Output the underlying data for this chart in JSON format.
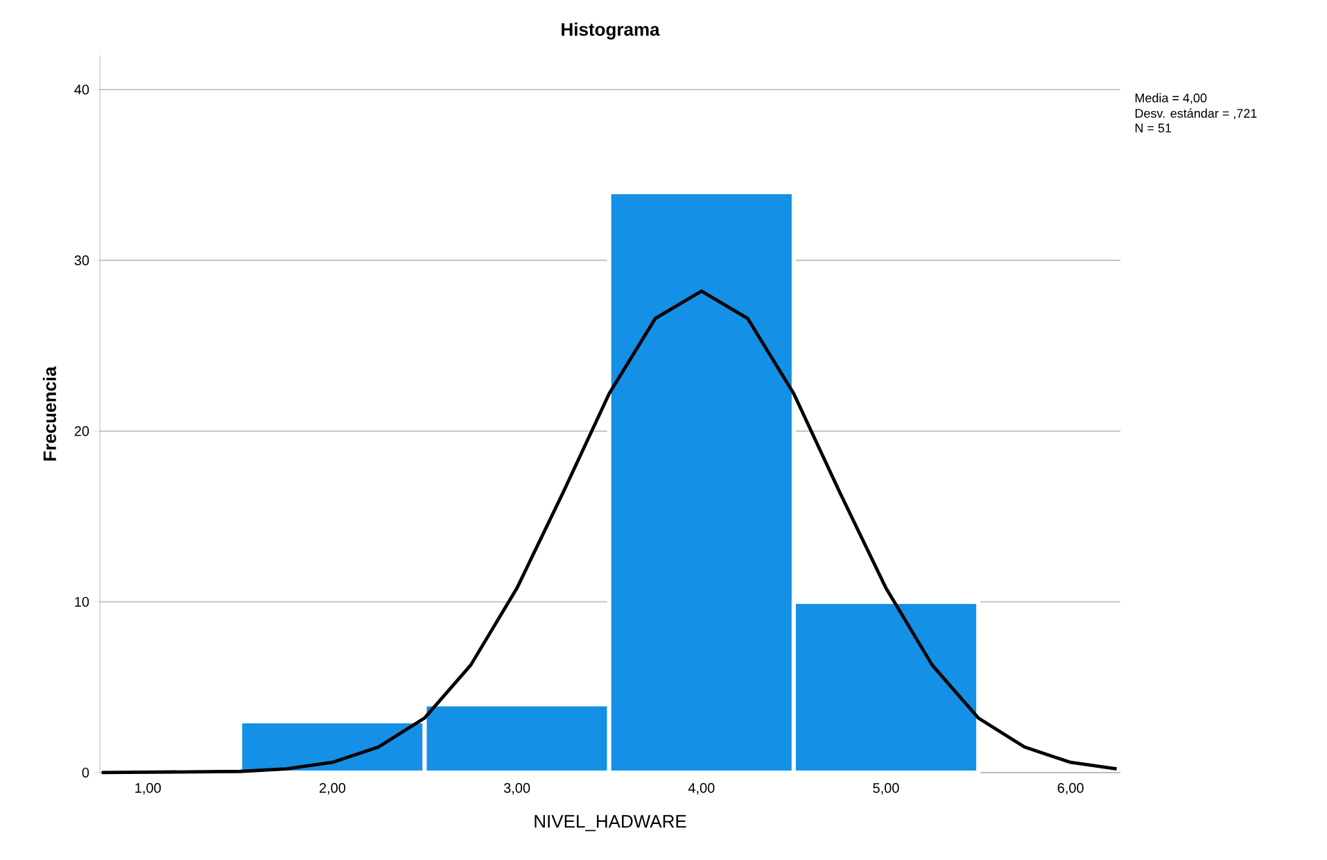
{
  "chart_data": {
    "type": "histogram",
    "title": "Histograma",
    "xlabel": "NIVEL_HADWARE",
    "ylabel": "Frecuencia",
    "bins": [
      1.5,
      2.5,
      3.5,
      4.5,
      5.5
    ],
    "values": [
      3,
      4,
      34,
      10
    ],
    "color": "#1490e6",
    "series": [
      {
        "type": "line",
        "color": "#000000",
        "x": [
          0.75,
          1.5,
          1.75,
          2,
          2.25,
          2.5,
          2.75,
          3,
          3.25,
          3.5,
          3.75,
          4,
          4.25,
          4.5,
          4.75,
          5,
          5.25,
          5.5,
          5.75,
          6,
          6.25
        ],
        "values": [
          0,
          0.07,
          0.22,
          0.6,
          1.5,
          3.2,
          6.3,
          10.8,
          16.4,
          22.2,
          26.6,
          28.2,
          26.6,
          22.2,
          16.4,
          10.8,
          6.3,
          3.2,
          1.5,
          0.6,
          0.22
        ]
      }
    ],
    "xlim": [
      0.74,
      6.27
    ],
    "xticks": [
      {
        "value": 1,
        "label": "1,00"
      },
      {
        "value": 2,
        "label": "2,00"
      },
      {
        "value": 3,
        "label": "3,00"
      },
      {
        "value": 4,
        "label": "4,00"
      },
      {
        "value": 5,
        "label": "5,00"
      },
      {
        "value": 6,
        "label": "6,00"
      }
    ],
    "ylim": [
      0,
      42
    ],
    "yticks": [
      0,
      10,
      20,
      30,
      40
    ],
    "grid": "y",
    "line_style": "solid",
    "annotations": [
      "Media = 4,00",
      "Desv. estándar = ,721",
      "N = 51"
    ]
  }
}
